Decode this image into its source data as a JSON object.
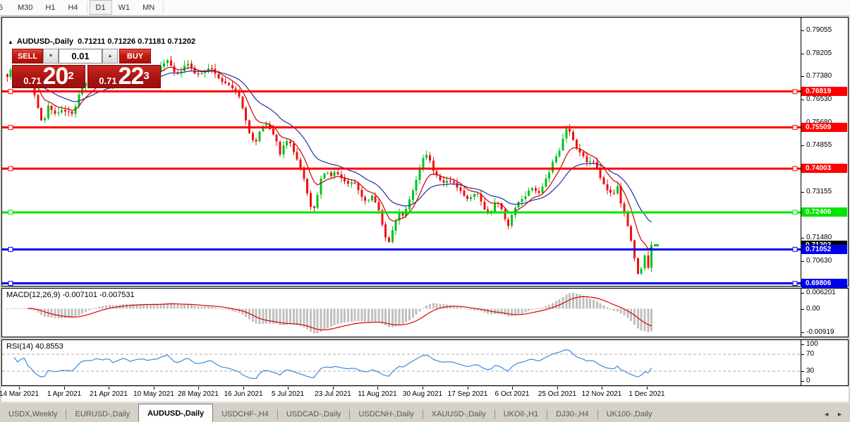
{
  "toolbar": {
    "timeframes": [
      "5",
      "M30",
      "H1",
      "H4",
      "D1",
      "W1",
      "MN"
    ],
    "active": "D1"
  },
  "trade_panel": {
    "collapse_icon": "▲",
    "symbol_title": "AUDUSD-,Daily",
    "ohlc": "0.71211 0.71226 0.71181 0.71202",
    "sell_label": "SELL",
    "buy_label": "BUY",
    "volume": "0.01",
    "spinner_down_icon": "▼",
    "spinner_up_icon": "▲",
    "bid": {
      "prefix": "0.71",
      "big": "20",
      "sup": "2"
    },
    "ask": {
      "prefix": "0.71",
      "big": "22",
      "sup": "3"
    }
  },
  "chart_data": {
    "type": "candlestick",
    "symbol": "AUDUSD-",
    "timeframe": "Daily",
    "ohlc_current": {
      "open": "0.71211",
      "high": "0.71226",
      "low": "0.71181",
      "close": "0.71202"
    },
    "y_range": {
      "top": 0.7952,
      "bottom": 0.6972
    },
    "num_candles": 190,
    "x_start": 5,
    "x_end": 923,
    "keypoints": [
      [
        5,
        0.773
      ],
      [
        13,
        0.7762
      ],
      [
        20,
        0.7738
      ],
      [
        30,
        0.7749
      ],
      [
        40,
        0.7713
      ],
      [
        47,
        0.766
      ],
      [
        54,
        0.7585
      ],
      [
        59,
        0.7566
      ],
      [
        66,
        0.7632
      ],
      [
        74,
        0.7601
      ],
      [
        82,
        0.7612
      ],
      [
        92,
        0.7608
      ],
      [
        100,
        0.7598
      ],
      [
        108,
        0.766
      ],
      [
        116,
        0.7718
      ],
      [
        126,
        0.7708
      ],
      [
        134,
        0.7737
      ],
      [
        142,
        0.7724
      ],
      [
        150,
        0.7742
      ],
      [
        158,
        0.7701
      ],
      [
        166,
        0.7736
      ],
      [
        174,
        0.776
      ],
      [
        182,
        0.7729
      ],
      [
        190,
        0.7745
      ],
      [
        198,
        0.7757
      ],
      [
        206,
        0.7739
      ],
      [
        214,
        0.7749
      ],
      [
        222,
        0.776
      ],
      [
        230,
        0.7786
      ],
      [
        236,
        0.7799
      ],
      [
        242,
        0.7761
      ],
      [
        250,
        0.7739
      ],
      [
        258,
        0.7771
      ],
      [
        264,
        0.7784
      ],
      [
        272,
        0.7753
      ],
      [
        280,
        0.7739
      ],
      [
        288,
        0.7757
      ],
      [
        296,
        0.7768
      ],
      [
        304,
        0.7743
      ],
      [
        312,
        0.7721
      ],
      [
        320,
        0.7709
      ],
      [
        328,
        0.7691
      ],
      [
        336,
        0.7662
      ],
      [
        344,
        0.759
      ],
      [
        352,
        0.7514
      ],
      [
        358,
        0.7489
      ],
      [
        366,
        0.7546
      ],
      [
        372,
        0.7567
      ],
      [
        380,
        0.7541
      ],
      [
        388,
        0.7509
      ],
      [
        394,
        0.7453
      ],
      [
        400,
        0.7489
      ],
      [
        406,
        0.7504
      ],
      [
        412,
        0.7471
      ],
      [
        418,
        0.7433
      ],
      [
        424,
        0.7391
      ],
      [
        430,
        0.7341
      ],
      [
        436,
        0.7266
      ],
      [
        440,
        0.7239
      ],
      [
        446,
        0.7293
      ],
      [
        452,
        0.7361
      ],
      [
        458,
        0.7391
      ],
      [
        466,
        0.7373
      ],
      [
        474,
        0.7389
      ],
      [
        482,
        0.7361
      ],
      [
        490,
        0.7341
      ],
      [
        498,
        0.7351
      ],
      [
        506,
        0.7321
      ],
      [
        512,
        0.7291
      ],
      [
        518,
        0.7279
      ],
      [
        524,
        0.7299
      ],
      [
        530,
        0.7271
      ],
      [
        536,
        0.7229
      ],
      [
        542,
        0.7161
      ],
      [
        547,
        0.7119
      ],
      [
        552,
        0.7166
      ],
      [
        558,
        0.7211
      ],
      [
        564,
        0.7241
      ],
      [
        570,
        0.7229
      ],
      [
        576,
        0.7283
      ],
      [
        582,
        0.7319
      ],
      [
        588,
        0.7361
      ],
      [
        594,
        0.7413
      ],
      [
        600,
        0.7461
      ],
      [
        606,
        0.7431
      ],
      [
        612,
        0.7391
      ],
      [
        618,
        0.7371
      ],
      [
        626,
        0.7346
      ],
      [
        634,
        0.7356
      ],
      [
        642,
        0.7341
      ],
      [
        650,
        0.7321
      ],
      [
        658,
        0.7283
      ],
      [
        666,
        0.7296
      ],
      [
        674,
        0.7311
      ],
      [
        682,
        0.7263
      ],
      [
        688,
        0.7236
      ],
      [
        694,
        0.7243
      ],
      [
        700,
        0.7286
      ],
      [
        706,
        0.7259
      ],
      [
        712,
        0.7223
      ],
      [
        716,
        0.7183
      ],
      [
        722,
        0.7223
      ],
      [
        728,
        0.7263
      ],
      [
        736,
        0.7291
      ],
      [
        744,
        0.7309
      ],
      [
        752,
        0.7333
      ],
      [
        760,
        0.7301
      ],
      [
        768,
        0.7349
      ],
      [
        776,
        0.7393
      ],
      [
        784,
        0.7441
      ],
      [
        790,
        0.7469
      ],
      [
        796,
        0.7516
      ],
      [
        801,
        0.7549
      ],
      [
        806,
        0.7531
      ],
      [
        812,
        0.7489
      ],
      [
        818,
        0.7463
      ],
      [
        824,
        0.7446
      ],
      [
        830,
        0.7416
      ],
      [
        836,
        0.7443
      ],
      [
        842,
        0.7413
      ],
      [
        848,
        0.7371
      ],
      [
        854,
        0.7333
      ],
      [
        860,
        0.7323
      ],
      [
        866,
        0.7299
      ],
      [
        872,
        0.7343
      ],
      [
        878,
        0.7263
      ],
      [
        884,
        0.7223
      ],
      [
        890,
        0.7153
      ],
      [
        896,
        0.7081
      ],
      [
        901,
        0.7019
      ],
      [
        905,
        0.6999
      ],
      [
        909,
        0.7149
      ],
      [
        913,
        0.7009
      ],
      [
        917,
        0.7053
      ],
      [
        920,
        0.7119
      ],
      [
        923,
        0.712
      ]
    ],
    "colors": {
      "up": "#00C322",
      "down": "#EE1111",
      "ma_fast": "#CC0000",
      "ma_slow": "#2030A0",
      "macd_hist": "#C0C0C0",
      "macd_signal": "#DD0000",
      "rsi": "#3C8BE0",
      "grid_dash": "#ABABAB"
    },
    "hlines": [
      {
        "price": 0.76819,
        "label": "0.76819",
        "color": "#FF0000",
        "width": 3
      },
      {
        "price": 0.75509,
        "label": "0.75509",
        "color": "#FF0000",
        "width": 3
      },
      {
        "price": 0.74003,
        "label": "0.74003",
        "color": "#FF0000",
        "width": 3
      },
      {
        "price": 0.72406,
        "label": "0.72406",
        "color": "#00E400",
        "width": 3
      },
      {
        "price": 0.71052,
        "label": "0.71052",
        "color": "#0000F0",
        "width": 3
      },
      {
        "price": 0.69806,
        "label": "0.69806",
        "color": "#0000F0",
        "width": 3
      }
    ],
    "current_price": {
      "value": 0.71202,
      "label": "0.71202",
      "badge_color": "#000000"
    },
    "price_axis_ticks": [
      "0.79055",
      "0.78205",
      "0.77380",
      "0.76530",
      "0.75680",
      "0.74855",
      "0.73155",
      "0.71480",
      "0.70630"
    ],
    "indicators": {
      "macd": {
        "label": "MACD(12,26,9)",
        "values": "-0.007101 -0.007531",
        "fast": 12,
        "slow": 26,
        "signal": 9,
        "axis": [
          "0.006201",
          "0.00",
          "-0.00919"
        ],
        "range": {
          "top": 0.0076,
          "bottom": -0.0105
        }
      },
      "rsi": {
        "label": "RSI(14)",
        "value": "40.8553",
        "period": 14,
        "axis": [
          100,
          70,
          30,
          0
        ],
        "levels": [
          70,
          30
        ]
      }
    },
    "x_axis_dates": [
      "14 Mar 2021",
      "1 Apr 2021",
      "21 Apr 2021",
      "10 May 2021",
      "28 May 2021",
      "16 Jun 2021",
      "5 Jul 2021",
      "23 Jul 2021",
      "11 Aug 2021",
      "30 Aug 2021",
      "17 Sep 2021",
      "6 Oct 2021",
      "25 Oct 2021",
      "12 Nov 2021",
      "1 Dec 2021"
    ],
    "date_x_start": 25,
    "date_x_step": 63.55
  },
  "tabs": {
    "items": [
      {
        "label": "USDX,Weekly"
      },
      {
        "label": "EURUSD-,Daily"
      },
      {
        "label": "AUDUSD-,Daily"
      },
      {
        "label": "USDCHF-,H4"
      },
      {
        "label": "USDCAD-,Daily"
      },
      {
        "label": "USDCNH-,Daily"
      },
      {
        "label": "XAUUSD-,Daily"
      },
      {
        "label": "UKOil-,H1"
      },
      {
        "label": "DJ30-,H4"
      },
      {
        "label": "UK100-,Daily"
      }
    ],
    "active_index": 2,
    "scroll_left": "◄",
    "scroll_right": "►"
  }
}
